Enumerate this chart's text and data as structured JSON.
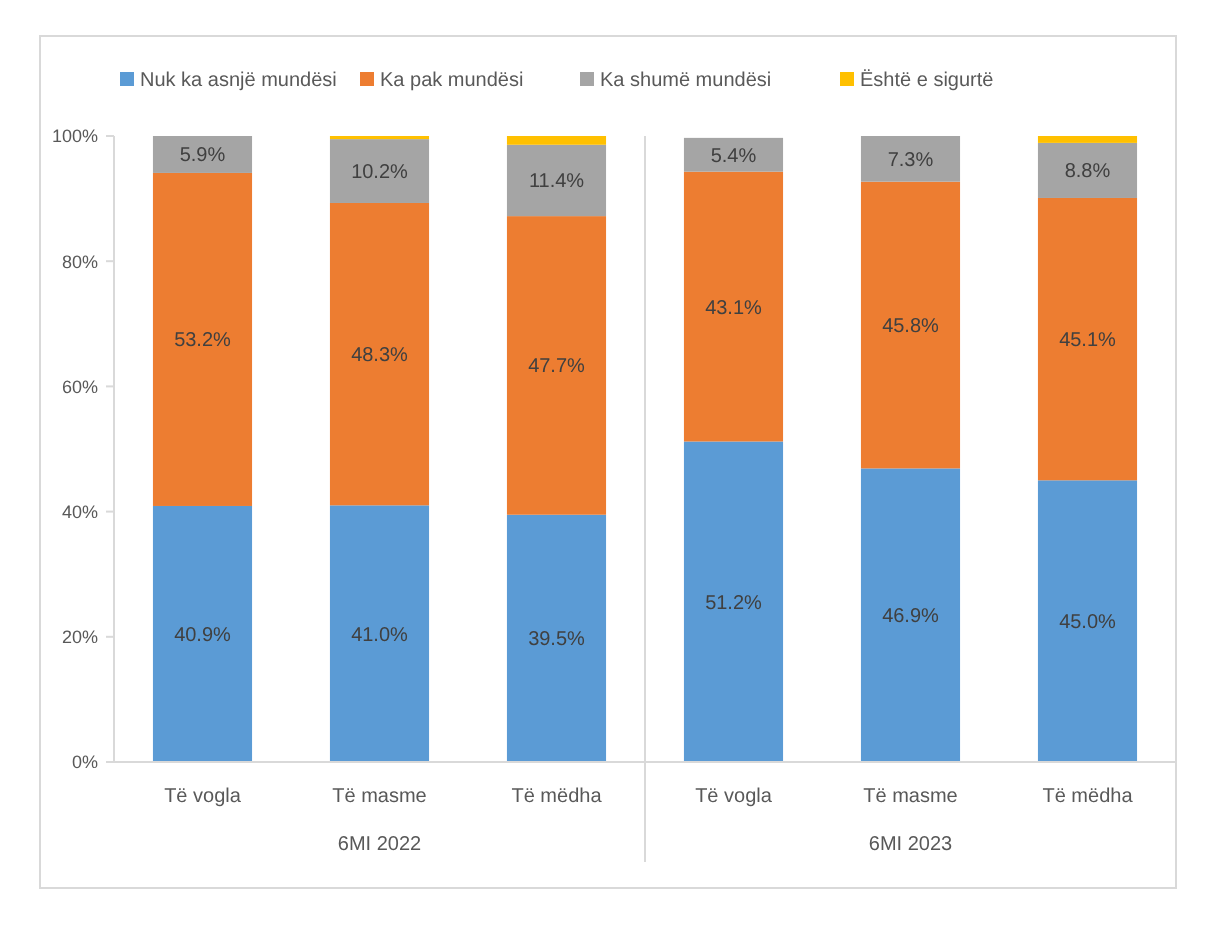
{
  "chart_data": {
    "type": "bar",
    "stacked": true,
    "categories": [
      "Të vogla",
      "Të masme",
      "Të mëdha",
      "Të vogla",
      "Të masme",
      "Të mëdha"
    ],
    "series": [
      {
        "name": "Nuk ka asnjë mundësi",
        "color": "#5b9bd5",
        "values": [
          40.9,
          41.0,
          39.5,
          51.2,
          46.9,
          45.0
        ],
        "value_labels": [
          "40.9%",
          "41.0%",
          "39.5%",
          "51.2%",
          "46.9%",
          "45.0%"
        ]
      },
      {
        "name": "Ka pak mundësi",
        "color": "#ed7d31",
        "values": [
          53.2,
          48.3,
          47.7,
          43.1,
          45.8,
          45.1
        ],
        "value_labels": [
          "53.2%",
          "48.3%",
          "47.7%",
          "43.1%",
          "45.8%",
          "45.1%"
        ]
      },
      {
        "name": "Ka shumë mundësi",
        "color": "#a5a5a5",
        "values": [
          5.9,
          10.2,
          11.4,
          5.4,
          7.3,
          8.8
        ],
        "value_labels": [
          "5.9%",
          "10.2%",
          "11.4%",
          "5.4%",
          "7.3%",
          "8.8%"
        ]
      },
      {
        "name": "Është e sigurtë",
        "color": "#ffc000",
        "values": [
          null,
          0.5,
          1.4,
          null,
          null,
          1.1
        ],
        "value_labels": [
          null,
          null,
          null,
          null,
          null,
          null
        ]
      }
    ],
    "ylim": [
      0,
      100
    ],
    "yticks": [
      {
        "value": 0,
        "label": "0%"
      },
      {
        "value": 20,
        "label": "20%"
      },
      {
        "value": 40,
        "label": "40%"
      },
      {
        "value": 60,
        "label": "60%"
      },
      {
        "value": 80,
        "label": "80%"
      },
      {
        "value": 100,
        "label": "100%"
      }
    ],
    "grid": false,
    "legend": "top",
    "annotations": [
      "6MI 2022",
      "6MI 2023"
    ]
  }
}
